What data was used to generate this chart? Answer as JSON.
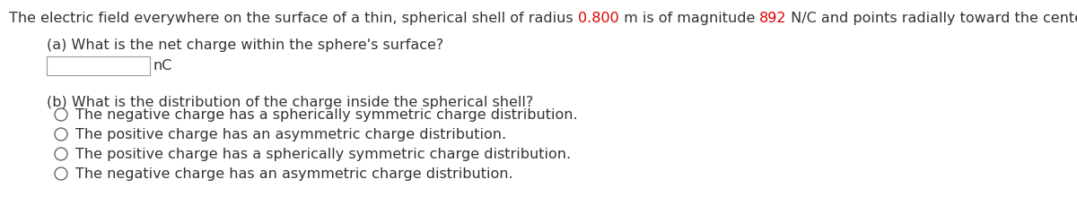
{
  "bg_color": "#ffffff",
  "line1_parts": [
    {
      "text": "The electric field everywhere on the surface of a thin, spherical shell of radius ",
      "color": "#333333"
    },
    {
      "text": "0.800",
      "color": "#dd0000"
    },
    {
      "text": " m is of magnitude ",
      "color": "#333333"
    },
    {
      "text": "892",
      "color": "#dd0000"
    },
    {
      "text": " N/C and points radially toward the center of the sphere.",
      "color": "#333333"
    }
  ],
  "part_a_label": "(a) What is the net charge within the sphere's surface?",
  "part_a_unit": "nC",
  "part_b_label": "(b) What is the distribution of the charge inside the spherical shell?",
  "options": [
    "The negative charge has a spherically symmetric charge distribution.",
    "The positive charge has an asymmetric charge distribution.",
    "The positive charge has a spherically symmetric charge distribution.",
    "The negative charge has an asymmetric charge distribution."
  ],
  "text_color": "#333333",
  "font_size": 11.5,
  "fig_width": 12.0,
  "fig_height": 2.29,
  "dpi": 100
}
